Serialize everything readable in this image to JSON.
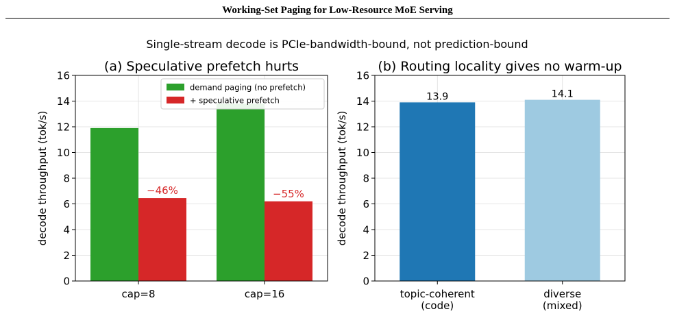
{
  "page": {
    "header_title": "Working-Set Paging for Low-Resource MoE Serving",
    "suptitle": "Single-stream decode is PCIe-bandwidth-bound, not prediction-bound"
  },
  "chart_data": [
    {
      "type": "bar",
      "title": "(a) Speculative prefetch hurts",
      "xlabel": "",
      "ylabel": "decode throughput (tok/s)",
      "ylim": [
        0,
        16
      ],
      "yticks": [
        0,
        2,
        4,
        6,
        8,
        10,
        12,
        14,
        16
      ],
      "grid": true,
      "legend_position": "top-right",
      "categories": [
        "cap=8",
        "cap=16"
      ],
      "series": [
        {
          "name": "demand paging (no prefetch)",
          "color": "#2ca02c",
          "values": [
            11.9,
            13.8
          ]
        },
        {
          "name": "+ speculative prefetch",
          "color": "#d62728",
          "values": [
            6.45,
            6.2
          ]
        }
      ],
      "annotations": [
        {
          "text": "−46%",
          "category": "cap=8",
          "series": 1,
          "color": "#d62728"
        },
        {
          "text": "−55%",
          "category": "cap=16",
          "series": 1,
          "color": "#d62728"
        }
      ]
    },
    {
      "type": "bar",
      "title": "(b) Routing locality gives no warm-up",
      "xlabel": "",
      "ylabel": "decode throughput (tok/s)",
      "ylim": [
        0,
        16
      ],
      "yticks": [
        0,
        2,
        4,
        6,
        8,
        10,
        12,
        14,
        16
      ],
      "grid": true,
      "categories": [
        "topic-coherent\n(code)",
        "diverse\n(mixed)"
      ],
      "values": [
        13.9,
        14.1
      ],
      "colors": [
        "#1f77b4",
        "#9ecae1"
      ],
      "data_labels": [
        "13.9",
        "14.1"
      ]
    }
  ]
}
